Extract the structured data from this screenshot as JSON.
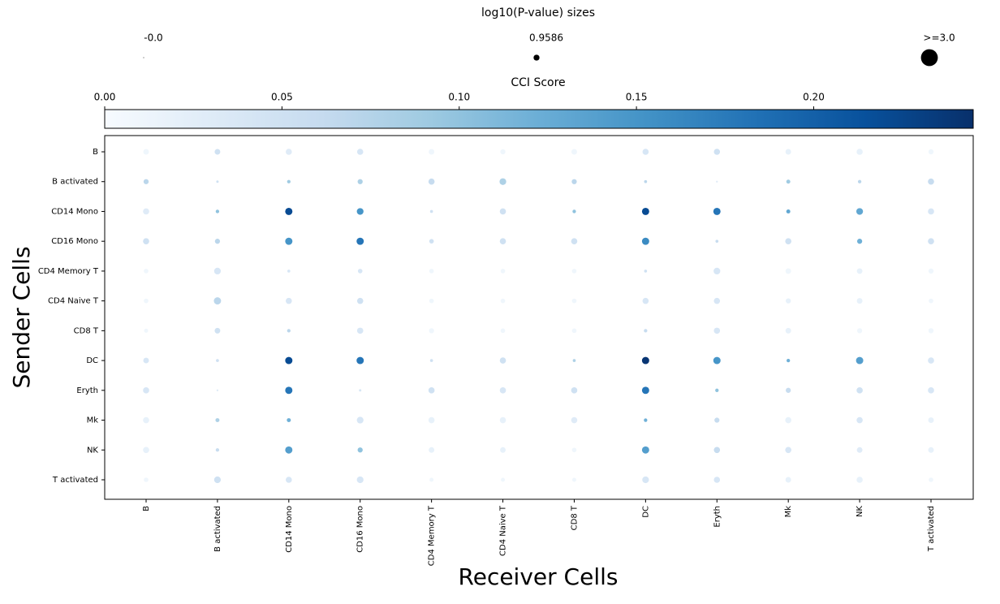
{
  "chart_data": {
    "type": "dotplot",
    "size_legend_title": "log10(P-value) sizes",
    "size_legend": [
      {
        "value": 0,
        "label": "-0.0"
      },
      0.9586,
      {
        "value": 3,
        "label": ">=3.0"
      }
    ],
    "colorbar_title": "CCI Score",
    "colormap": "Blues",
    "clim": [
      0,
      0.245
    ],
    "cticks": [
      {
        "value": 0,
        "label": "0.00"
      },
      {
        "value": 0.05,
        "label": "0.05"
      },
      {
        "value": 0.1,
        "label": "0.10"
      },
      {
        "value": 0.15,
        "label": "0.15"
      },
      {
        "value": 0.2,
        "label": "0.20"
      }
    ],
    "xlabel": "Receiver Cells",
    "ylabel": "Sender Cells",
    "x_categories": [
      "B",
      "B activated",
      "CD14 Mono",
      "CD16 Mono",
      "CD4 Memory T",
      "CD4 Naive T",
      "CD8 T",
      "DC",
      "Eryth",
      "Mk",
      "NK",
      "T activated"
    ],
    "y_categories": [
      "B",
      "B activated",
      "CD14 Mono",
      "CD16 Mono",
      "CD4 Memory T",
      "CD4 Naive T",
      "CD8 T",
      "DC",
      "Eryth",
      "Mk",
      "NK",
      "T activated"
    ],
    "values": [
      [
        0.01,
        0.05,
        0.03,
        0.04,
        0.01,
        0.01,
        0.01,
        0.04,
        0.05,
        0.02,
        0.02,
        0.01
      ],
      [
        0.07,
        0.05,
        0.09,
        0.08,
        0.06,
        0.08,
        0.07,
        0.07,
        0.03,
        0.09,
        0.07,
        0.06
      ],
      [
        0.03,
        0.1,
        0.22,
        0.15,
        0.05,
        0.05,
        0.1,
        0.22,
        0.18,
        0.13,
        0.13,
        0.04
      ],
      [
        0.05,
        0.07,
        0.15,
        0.18,
        0.05,
        0.05,
        0.05,
        0.16,
        0.06,
        0.05,
        0.12,
        0.05
      ],
      [
        0.01,
        0.04,
        0.04,
        0.04,
        0.01,
        0.01,
        0.01,
        0.05,
        0.04,
        0.01,
        0.02,
        0.01
      ],
      [
        0.01,
        0.07,
        0.04,
        0.05,
        0.01,
        0.01,
        0.01,
        0.04,
        0.04,
        0.02,
        0.02,
        0.01
      ],
      [
        0.01,
        0.05,
        0.07,
        0.04,
        0.01,
        0.01,
        0.01,
        0.06,
        0.04,
        0.02,
        0.01,
        0.01
      ],
      [
        0.04,
        0.05,
        0.22,
        0.18,
        0.05,
        0.05,
        0.08,
        0.24,
        0.15,
        0.12,
        0.14,
        0.04
      ],
      [
        0.04,
        0.03,
        0.18,
        0.04,
        0.05,
        0.04,
        0.05,
        0.18,
        0.1,
        0.06,
        0.05,
        0.04
      ],
      [
        0.02,
        0.08,
        0.12,
        0.04,
        0.02,
        0.02,
        0.03,
        0.12,
        0.06,
        0.02,
        0.04,
        0.02
      ],
      [
        0.02,
        0.06,
        0.14,
        0.1,
        0.02,
        0.02,
        0.01,
        0.14,
        0.06,
        0.04,
        0.03,
        0.02
      ],
      [
        0.01,
        0.05,
        0.04,
        0.04,
        0.01,
        0.01,
        0.01,
        0.04,
        0.04,
        0.02,
        0.02,
        0.01
      ]
    ],
    "sizes": [
      [
        0.9,
        0.9,
        1.0,
        1.0,
        0.9,
        0.8,
        0.9,
        1.0,
        1.0,
        0.9,
        1.0,
        0.8
      ],
      [
        0.8,
        0.3,
        0.5,
        0.8,
        1.0,
        1.1,
        0.8,
        0.4,
        0.2,
        0.6,
        0.5,
        1.0
      ],
      [
        1.0,
        0.5,
        1.2,
        1.1,
        0.4,
        1.0,
        0.5,
        1.2,
        1.2,
        0.6,
        1.1,
        1.0
      ],
      [
        1.0,
        0.8,
        1.2,
        1.2,
        0.7,
        1.0,
        1.0,
        1.2,
        0.4,
        1.0,
        0.8,
        1.0
      ],
      [
        0.7,
        1.1,
        0.4,
        0.7,
        0.7,
        0.7,
        0.7,
        0.4,
        1.1,
        0.9,
        0.9,
        0.8
      ],
      [
        0.7,
        1.2,
        1.0,
        1.0,
        0.7,
        0.7,
        0.7,
        1.0,
        1.0,
        0.8,
        0.9,
        0.7
      ],
      [
        0.6,
        0.9,
        0.5,
        1.0,
        0.8,
        0.7,
        0.7,
        0.5,
        1.0,
        0.9,
        0.8,
        0.8
      ],
      [
        0.9,
        0.4,
        1.2,
        1.2,
        0.4,
        1.0,
        0.4,
        1.2,
        1.2,
        0.5,
        1.2,
        1.0
      ],
      [
        1.0,
        0.2,
        1.2,
        0.3,
        1.0,
        1.0,
        1.0,
        1.2,
        0.5,
        0.8,
        1.0,
        1.0
      ],
      [
        1.0,
        0.6,
        0.6,
        1.1,
        1.0,
        1.0,
        1.0,
        0.5,
        0.8,
        1.0,
        1.0,
        0.9
      ],
      [
        1.0,
        0.5,
        1.2,
        0.8,
        0.9,
        0.9,
        0.7,
        1.2,
        1.0,
        1.0,
        0.9,
        0.9
      ],
      [
        0.7,
        1.1,
        1.0,
        1.1,
        0.6,
        0.6,
        0.6,
        1.1,
        1.0,
        0.9,
        1.0,
        0.7
      ]
    ]
  }
}
